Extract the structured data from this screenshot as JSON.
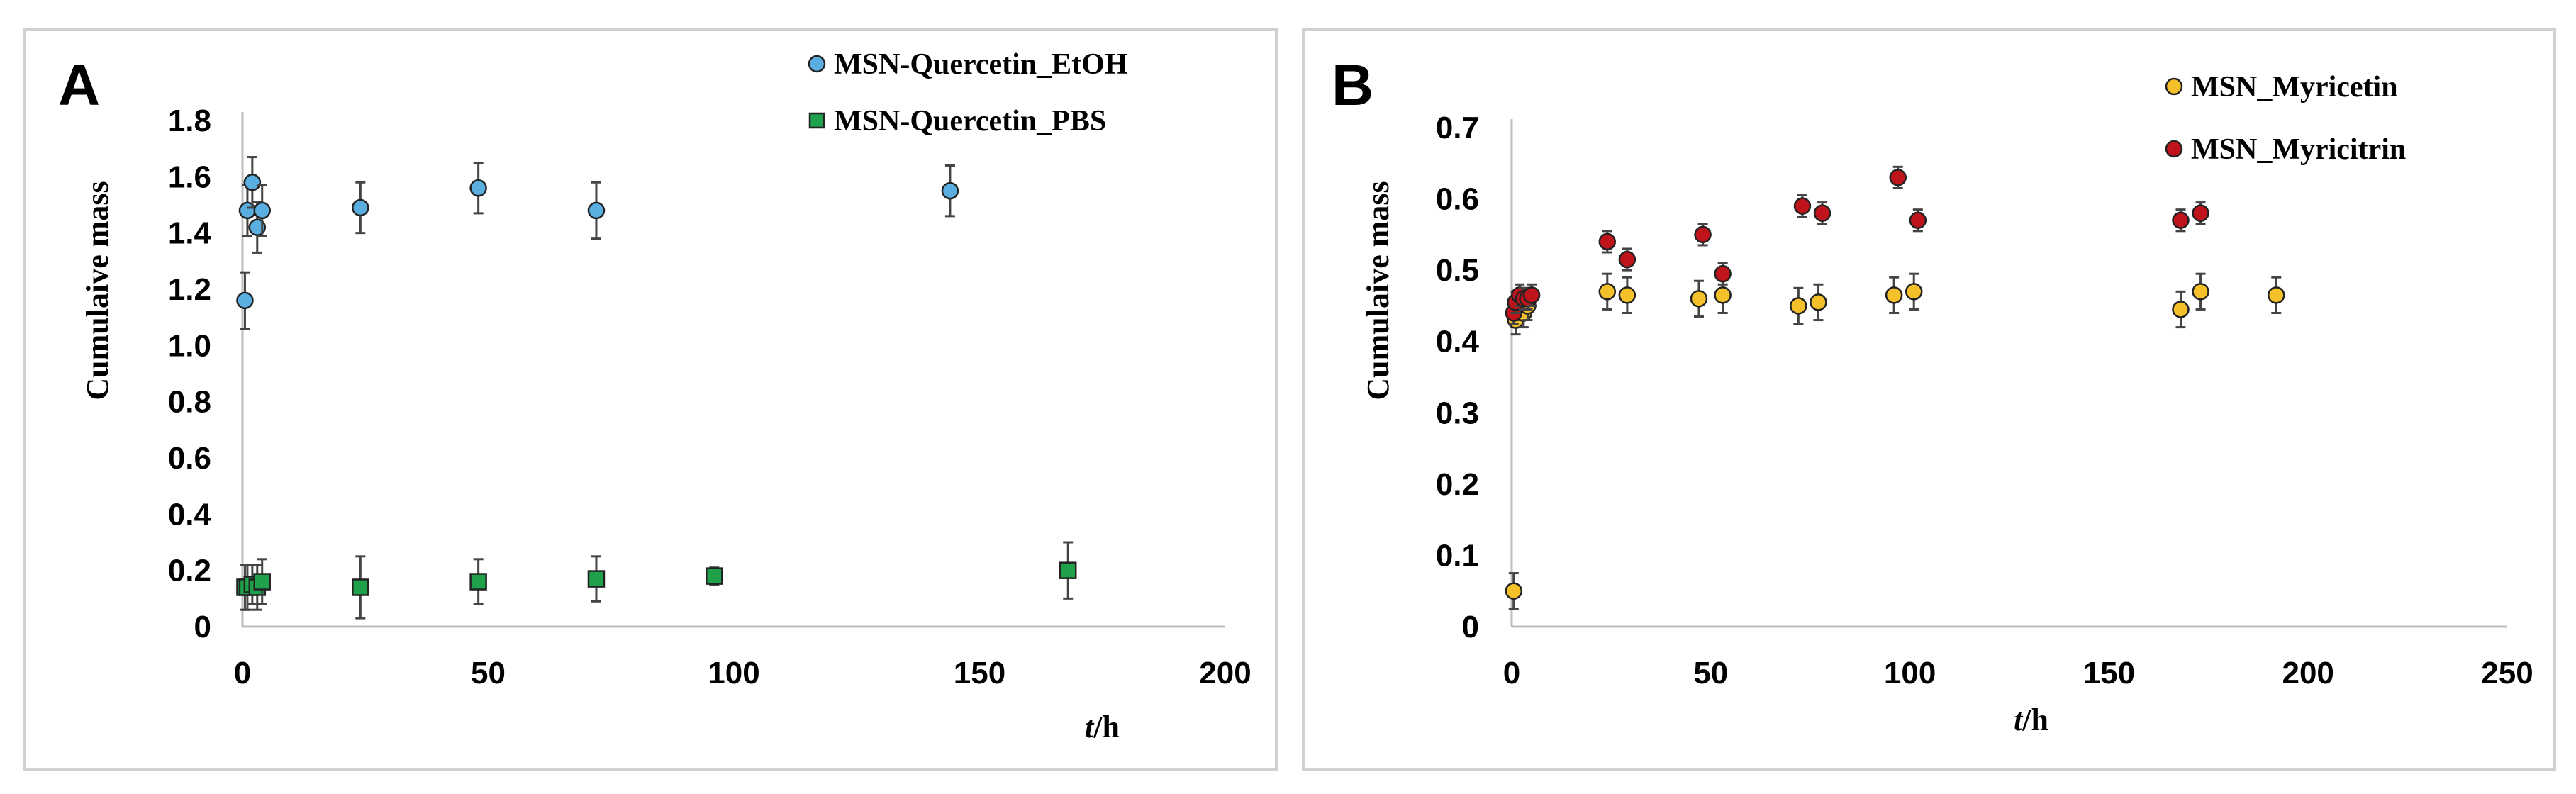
{
  "chart_data": [
    {
      "panel": "A",
      "type": "scatter",
      "xlabel_italic": "t",
      "xlabel_unit": "/h",
      "ylabel": "Cumulaive  mass",
      "xlim": [
        0,
        200
      ],
      "ylim": [
        0,
        1.8
      ],
      "xticks": [
        "0",
        "50",
        "100",
        "150",
        "200"
      ],
      "yticks": [
        "0",
        "0.2",
        "0.4",
        "0.6",
        "0.8",
        "1.0",
        "1.2",
        "1.4",
        "1.6",
        "1.8"
      ],
      "legend_position": "top-right",
      "series": [
        {
          "name": "MSN-Quercetin_EtOH",
          "marker": "circle",
          "color": "#5aaee0",
          "points": [
            {
              "x": 0.5,
              "y": 1.16,
              "err": 0.1
            },
            {
              "x": 1,
              "y": 1.48,
              "err": 0.09
            },
            {
              "x": 2,
              "y": 1.58,
              "err": 0.09
            },
            {
              "x": 3,
              "y": 1.42,
              "err": 0.09
            },
            {
              "x": 4,
              "y": 1.48,
              "err": 0.09
            },
            {
              "x": 24,
              "y": 1.49,
              "err": 0.09
            },
            {
              "x": 48,
              "y": 1.56,
              "err": 0.09
            },
            {
              "x": 72,
              "y": 1.48,
              "err": 0.1
            },
            {
              "x": 144,
              "y": 1.55,
              "err": 0.09
            }
          ]
        },
        {
          "name": "MSN-Quercetin_PBS",
          "marker": "square",
          "color": "#1fa04a",
          "points": [
            {
              "x": 0.5,
              "y": 0.14,
              "err": 0.08
            },
            {
              "x": 1,
              "y": 0.14,
              "err": 0.08
            },
            {
              "x": 2,
              "y": 0.15,
              "err": 0.07
            },
            {
              "x": 3,
              "y": 0.14,
              "err": 0.08
            },
            {
              "x": 4,
              "y": 0.16,
              "err": 0.08
            },
            {
              "x": 24,
              "y": 0.14,
              "err": 0.11
            },
            {
              "x": 48,
              "y": 0.16,
              "err": 0.08
            },
            {
              "x": 72,
              "y": 0.17,
              "err": 0.08
            },
            {
              "x": 96,
              "y": 0.18,
              "err": 0.03
            },
            {
              "x": 168,
              "y": 0.2,
              "err": 0.1
            }
          ]
        }
      ]
    },
    {
      "panel": "B",
      "type": "scatter",
      "xlabel_italic": "t",
      "xlabel_unit": "/h",
      "ylabel": "Cumulaive  mass",
      "xlim": [
        0,
        250
      ],
      "ylim": [
        0,
        0.7
      ],
      "xticks": [
        "0",
        "50",
        "100",
        "150",
        "200",
        "250"
      ],
      "yticks": [
        "0",
        "0.1",
        "0.2",
        "0.3",
        "0.4",
        "0.5",
        "0.6",
        "0.7"
      ],
      "legend_position": "top-right",
      "series": [
        {
          "name": "MSN_Myricetin",
          "marker": "circle",
          "color": "#f5c12a",
          "points": [
            {
              "x": 0.5,
              "y": 0.05,
              "err": 0.025
            },
            {
              "x": 1,
              "y": 0.43,
              "err": 0.02
            },
            {
              "x": 2,
              "y": 0.45,
              "err": 0.02
            },
            {
              "x": 3,
              "y": 0.44,
              "err": 0.02
            },
            {
              "x": 4,
              "y": 0.45,
              "err": 0.02
            },
            {
              "x": 24,
              "y": 0.47,
              "err": 0.025
            },
            {
              "x": 29,
              "y": 0.465,
              "err": 0.025
            },
            {
              "x": 47,
              "y": 0.46,
              "err": 0.025
            },
            {
              "x": 53,
              "y": 0.465,
              "err": 0.025
            },
            {
              "x": 72,
              "y": 0.45,
              "err": 0.025
            },
            {
              "x": 77,
              "y": 0.455,
              "err": 0.025
            },
            {
              "x": 96,
              "y": 0.465,
              "err": 0.025
            },
            {
              "x": 101,
              "y": 0.47,
              "err": 0.025
            },
            {
              "x": 168,
              "y": 0.445,
              "err": 0.025
            },
            {
              "x": 173,
              "y": 0.47,
              "err": 0.025
            },
            {
              "x": 192,
              "y": 0.465,
              "err": 0.025
            }
          ]
        },
        {
          "name": "MSN_Myricitrin",
          "marker": "circle",
          "color": "#c0141c",
          "points": [
            {
              "x": 0.5,
              "y": 0.44,
              "err": 0.015
            },
            {
              "x": 1,
              "y": 0.455,
              "err": 0.015
            },
            {
              "x": 2,
              "y": 0.465,
              "err": 0.015
            },
            {
              "x": 3,
              "y": 0.46,
              "err": 0.015
            },
            {
              "x": 4,
              "y": 0.46,
              "err": 0.015
            },
            {
              "x": 5,
              "y": 0.465,
              "err": 0.015
            },
            {
              "x": 24,
              "y": 0.54,
              "err": 0.015
            },
            {
              "x": 29,
              "y": 0.515,
              "err": 0.015
            },
            {
              "x": 48,
              "y": 0.55,
              "err": 0.015
            },
            {
              "x": 53,
              "y": 0.495,
              "err": 0.015
            },
            {
              "x": 73,
              "y": 0.59,
              "err": 0.015
            },
            {
              "x": 78,
              "y": 0.58,
              "err": 0.015
            },
            {
              "x": 97,
              "y": 0.63,
              "err": 0.015
            },
            {
              "x": 102,
              "y": 0.57,
              "err": 0.015
            },
            {
              "x": 168,
              "y": 0.57,
              "err": 0.015
            },
            {
              "x": 173,
              "y": 0.58,
              "err": 0.015
            }
          ]
        }
      ]
    }
  ]
}
